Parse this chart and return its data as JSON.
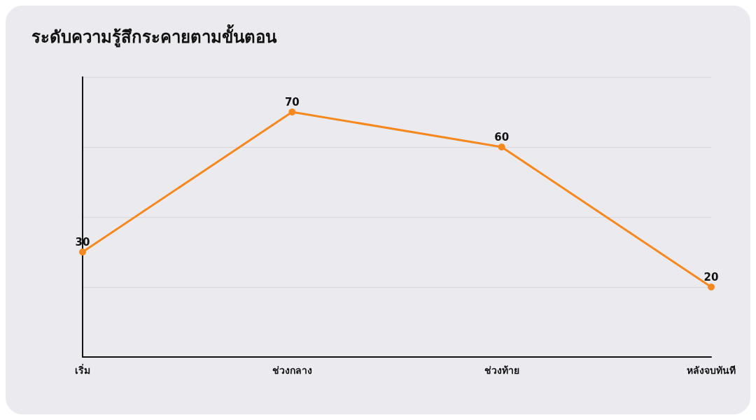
{
  "chart_data": {
    "type": "line",
    "title": "ระดับความรู้สึกระคายตามขั้นตอน",
    "categories": [
      "เริ่ม",
      "ช่วงกลาง",
      "ช่วงท้าย",
      "หลังจบทันที"
    ],
    "values": [
      30,
      70,
      60,
      20
    ],
    "color": "#f5891f",
    "marker": "circle",
    "data_labels": true,
    "relative": false,
    "ylim": [
      0,
      80
    ],
    "yticks": [
      {
        "value": 0,
        "label": null
      },
      {
        "value": 20,
        "label": null
      },
      {
        "value": 40,
        "label": null
      },
      {
        "value": 60,
        "label": null
      },
      {
        "value": 80,
        "label": null
      }
    ],
    "grid": "y",
    "tick_labels": "x"
  }
}
